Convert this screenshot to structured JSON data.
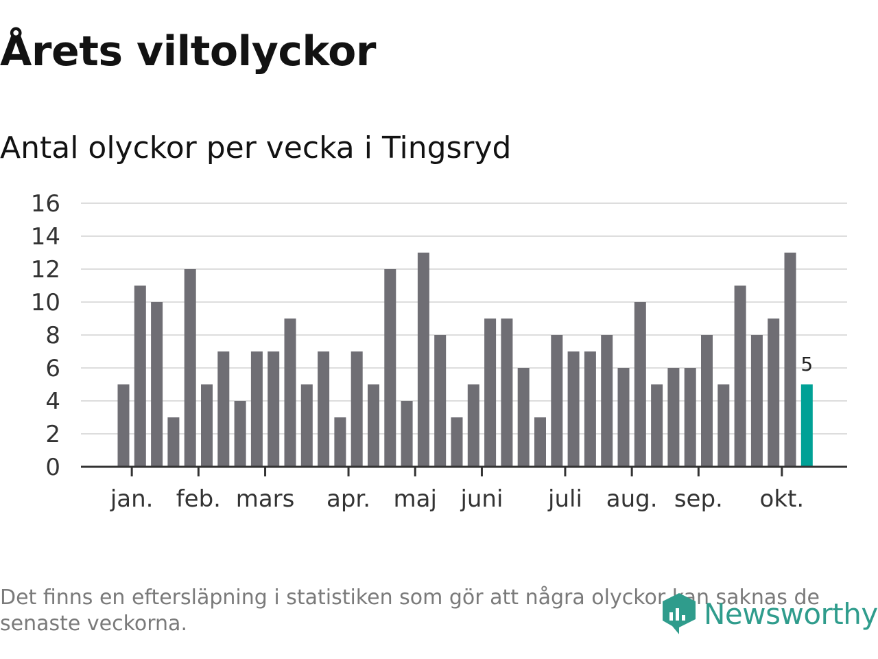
{
  "title": "Årets viltolyckor",
  "subtitle": "Antal olyckor per vecka i Tingsryd",
  "footnote": "Det finns en eftersläpning i statistiken som gör att några olyckor kan saknas de senaste veckorna.",
  "brand": {
    "name": "Newsworthy",
    "logo_icon": "newsworthy-logo-icon"
  },
  "colors": {
    "bar": "#6f6e74",
    "highlight": "#00a196",
    "grid": "#dddddd",
    "axis": "#333333",
    "brand": "#2f9c8c"
  },
  "chart_data": {
    "type": "bar",
    "title": "Antal olyckor per vecka i Tingsryd",
    "xlabel": "",
    "ylabel": "",
    "ylim": [
      0,
      16
    ],
    "yticks": [
      0,
      2,
      4,
      6,
      8,
      10,
      12,
      14,
      16
    ],
    "grid": true,
    "values": [
      5,
      11,
      10,
      3,
      12,
      5,
      7,
      4,
      7,
      7,
      9,
      5,
      7,
      3,
      7,
      5,
      12,
      4,
      13,
      8,
      3,
      5,
      9,
      9,
      6,
      3,
      8,
      7,
      7,
      8,
      6,
      10,
      5,
      6,
      6,
      8,
      5,
      11,
      8,
      9,
      13,
      5
    ],
    "highlight_last": true,
    "last_value_label": "5",
    "month_labels": [
      {
        "label": "jan.",
        "bar_index": 0.5
      },
      {
        "label": "feb.",
        "bar_index": 4.5
      },
      {
        "label": "mars",
        "bar_index": 8.5
      },
      {
        "label": "apr.",
        "bar_index": 13.5
      },
      {
        "label": "maj",
        "bar_index": 17.5
      },
      {
        "label": "juni",
        "bar_index": 21.5
      },
      {
        "label": "juli",
        "bar_index": 26.5
      },
      {
        "label": "aug.",
        "bar_index": 30.5
      },
      {
        "label": "sep.",
        "bar_index": 34.5
      },
      {
        "label": "okt.",
        "bar_index": 39.5
      }
    ]
  }
}
